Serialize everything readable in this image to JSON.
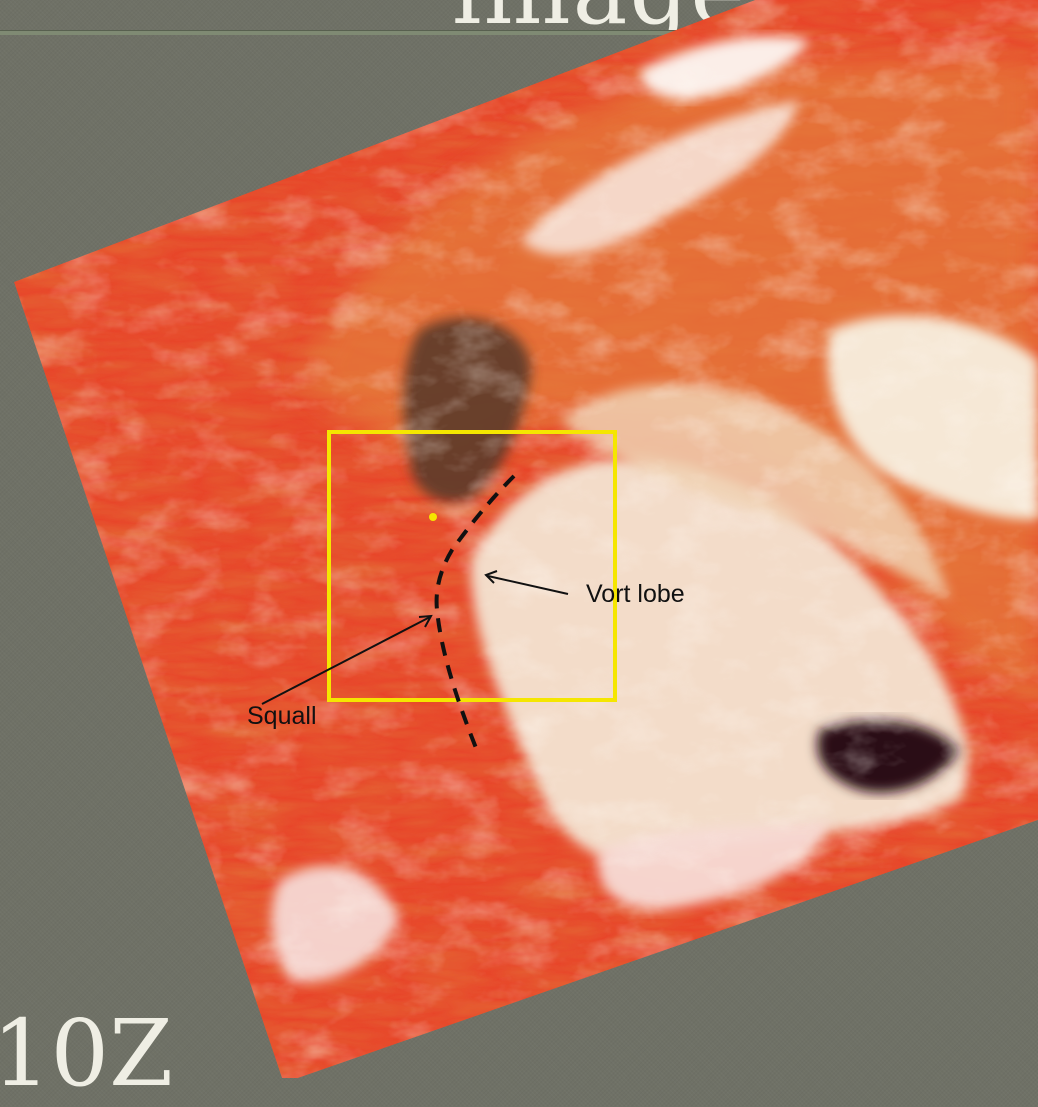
{
  "slide": {
    "title_partial": "imagery",
    "time_label": "10Z"
  },
  "imagery": {
    "annotations": {
      "vort_lobe": "Vort lobe",
      "squall": "Squall"
    },
    "colors": {
      "box": "#f5e600",
      "marker": "#f5e600",
      "front_line": "#111111",
      "background": "#6f7166"
    }
  }
}
